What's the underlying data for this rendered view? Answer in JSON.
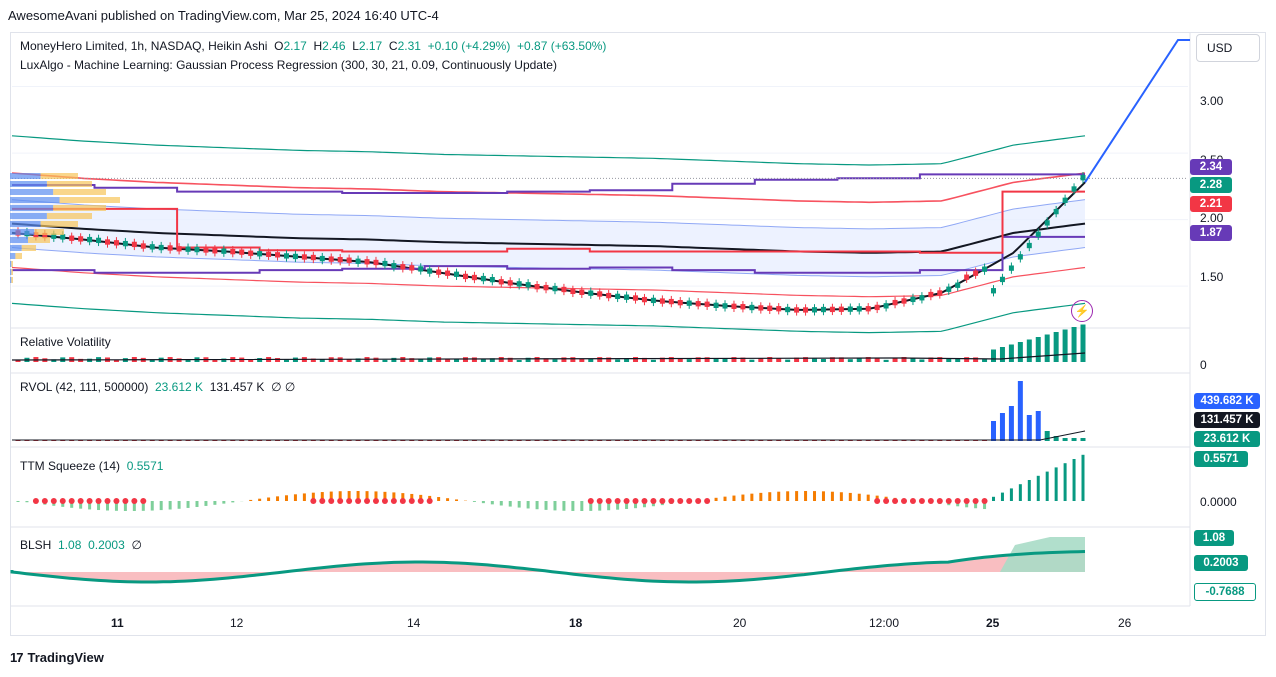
{
  "header": {
    "publish_line": "AwesomeAvani published on TradingView.com, Mar 25, 2024 16:40 UTC-4"
  },
  "main_legend": {
    "symbol": "MoneyHero Limited, 1h, NASDAQ, Heikin Ashi",
    "o_label": "O",
    "o": "2.17",
    "h_label": "H",
    "h": "2.46",
    "l_label": "L",
    "l": "2.17",
    "c_label": "C",
    "c": "2.31",
    "change": "+0.10 (+4.29%)",
    "change2": "+0.87 (+63.50%)",
    "indicator": "LuxAlgo - Machine Learning: Gaussian Process Regression (300, 30, 21, 0.09, Continuously Update)"
  },
  "currency_button": "USD",
  "price_axis": {
    "ticks": [
      "3.00",
      "2.50",
      "2.00",
      "1.50"
    ]
  },
  "price_badges": [
    {
      "value": "2.34",
      "color": "#673ab7"
    },
    {
      "value": "2.28",
      "color": "#089981"
    },
    {
      "value": "2.21",
      "color": "#f23645"
    },
    {
      "value": "1.87",
      "color": "#673ab7"
    }
  ],
  "panes": {
    "rel_vol": {
      "title": "Relative Volatility",
      "axis_zero": "0"
    },
    "rvol": {
      "title": "RVOL (42, 111, 500000)",
      "v1": "23.612 K",
      "v2": "131.457 K",
      "v3": "∅ ∅",
      "badges": [
        {
          "value": "439.682 K",
          "color": "#2962ff"
        },
        {
          "value": "131.457 K",
          "color": "#131722"
        },
        {
          "value": "23.612 K",
          "color": "#089981"
        }
      ]
    },
    "ttm": {
      "title": "TTM Squeeze (14)",
      "v1": "0.5571",
      "axis_zero": "0.0000",
      "badges": [
        {
          "value": "0.5571",
          "color": "#089981"
        }
      ]
    },
    "blsh": {
      "title": "BLSH",
      "v1": "1.08",
      "v2": "0.2003",
      "v3": "∅",
      "badges": [
        {
          "value": "1.08",
          "color": "#089981"
        },
        {
          "value": "0.2003",
          "color": "#089981"
        },
        {
          "value": "-0.7688",
          "color": "#089981"
        }
      ]
    }
  },
  "time_axis": [
    "11",
    "12",
    "14",
    "18",
    "20",
    "12:00",
    "25",
    "26"
  ],
  "footer": {
    "brand": "TradingView"
  },
  "chart_data": {
    "type": "line",
    "title": "MoneyHero Limited, 1h, NASDAQ, Heikin Ashi",
    "x": [
      "11",
      "12",
      "14",
      "18",
      "20",
      "12:00",
      "25",
      "26"
    ],
    "ylim": [
      1.2,
      3.35
    ],
    "series": [
      {
        "name": "Heikin Ashi close",
        "values": [
          1.96,
          1.79,
          1.74,
          1.62,
          1.37,
          1.33,
          1.32,
          2.31
        ]
      },
      {
        "name": "Gaussian Process Regression",
        "values": [
          1.9,
          1.79,
          1.72,
          1.55,
          1.39,
          1.32,
          1.5,
          2.28
        ]
      }
    ],
    "ohlc_last": {
      "open": 2.17,
      "high": 2.46,
      "low": 2.17,
      "close": 2.31
    },
    "levels": [
      2.34,
      2.28,
      2.21,
      1.87
    ],
    "grid": true
  },
  "colors": {
    "up": "#089981",
    "down": "#f23645",
    "purple": "#673ab7",
    "blue": "#2962ff",
    "green_band": "#089981",
    "red_band": "#f7525f",
    "fill": "#e8efff"
  }
}
